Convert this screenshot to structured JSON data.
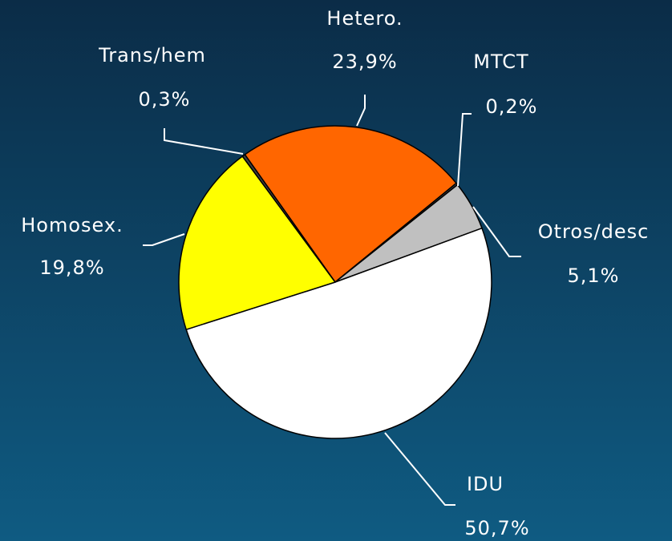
{
  "chart_data": {
    "type": "pie",
    "categories": [
      "Hetero.",
      "MTCT",
      "Otros/desc",
      "IDU",
      "Homosex.",
      "Trans/hem"
    ],
    "values": [
      23.9,
      0.2,
      5.1,
      50.7,
      19.8,
      0.3
    ],
    "value_labels": [
      "23,9%",
      "0,2%",
      "5,1%",
      "50,7%",
      "19,8%",
      "0,3%"
    ],
    "colors": [
      "#ff6600",
      "#404040",
      "#c0c0c0",
      "#ffffff",
      "#ffff00",
      "#404040"
    ]
  }
}
